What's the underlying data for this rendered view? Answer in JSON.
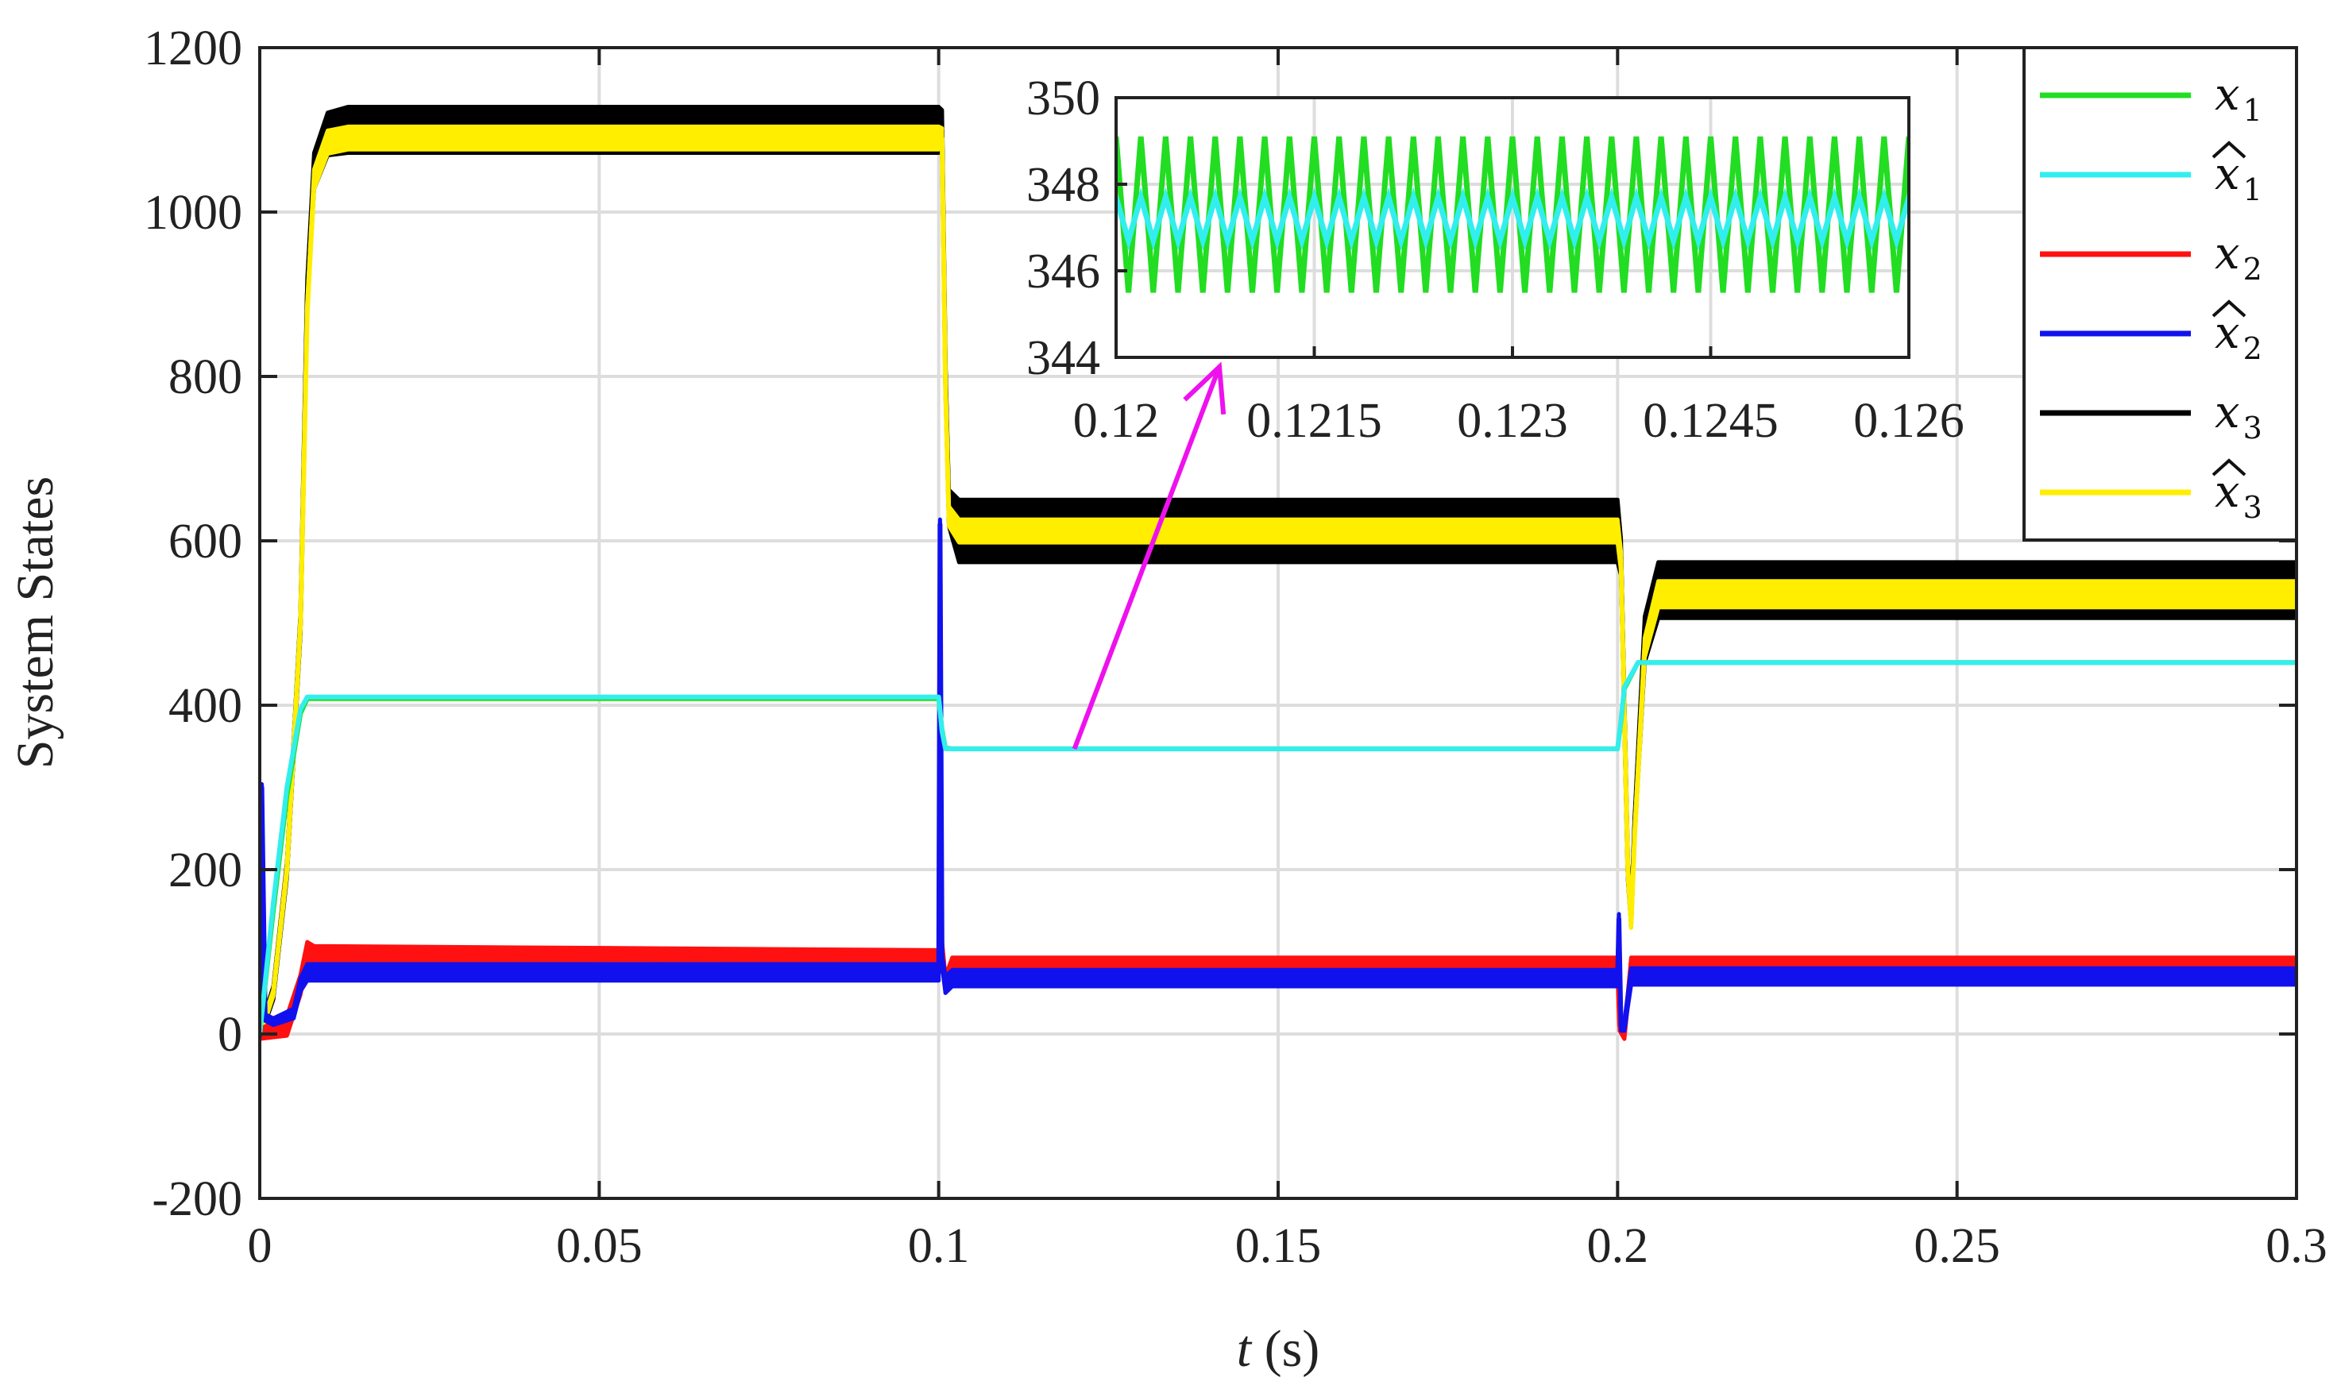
{
  "chart_data": [
    {
      "type": "line",
      "xlabel_var": "t",
      "xlabel_unit": " (s)",
      "ylabel": "System States",
      "xlim": [
        0,
        0.3
      ],
      "ylim": [
        -200,
        1200
      ],
      "xticks": [
        0,
        0.05,
        0.1,
        0.15,
        0.2,
        0.25,
        0.3
      ],
      "xtick_labels": [
        "0",
        "0.05",
        "0.1",
        "0.15",
        "0.2",
        "0.25",
        "0.3"
      ],
      "yticks": [
        -200,
        0,
        200,
        400,
        600,
        800,
        1000,
        1200
      ],
      "ytick_labels": [
        "-200",
        "0",
        "200",
        "400",
        "600",
        "800",
        "1000",
        "1200"
      ],
      "grid": true,
      "legend_position": "top-right",
      "series": [
        {
          "key": "x1",
          "name": "x",
          "sub": "1",
          "hat": false,
          "color": "#22dd22",
          "x": [
            0,
            0.002,
            0.004,
            0.006,
            0.007,
            0.1,
            0.1005,
            0.101,
            0.102,
            0.2,
            0.2005,
            0.201,
            0.203,
            0.3
          ],
          "y": [
            0,
            150,
            290,
            390,
            408,
            408,
            370,
            348,
            347,
            347,
            380,
            420,
            452,
            452
          ]
        },
        {
          "key": "xhat1",
          "name": "x",
          "sub": "1",
          "hat": true,
          "color": "#33eeee",
          "x": [
            0,
            0.002,
            0.004,
            0.006,
            0.007,
            0.1,
            0.1005,
            0.101,
            0.102,
            0.2,
            0.2005,
            0.201,
            0.203,
            0.3
          ],
          "y": [
            0,
            160,
            300,
            395,
            410,
            410,
            368,
            347,
            347,
            347,
            382,
            422,
            452,
            452
          ]
        },
        {
          "key": "x2",
          "name": "x",
          "sub": "2",
          "hat": false,
          "color": "#ff1111",
          "x": [
            0,
            0.004,
            0.006,
            0.007,
            0.008,
            0.1,
            0.1003,
            0.101,
            0.102,
            0.2,
            0.2003,
            0.201,
            0.202,
            0.3
          ],
          "y": [
            0,
            10,
            60,
            100,
            95,
            90,
            120,
            60,
            85,
            85,
            10,
            0,
            85,
            85
          ],
          "band": [
            6,
            12,
            12,
            12,
            12,
            12,
            10,
            10,
            8,
            8,
            6,
            6,
            8,
            8
          ]
        },
        {
          "key": "xhat2",
          "name": "x",
          "sub": "2",
          "hat": true,
          "color": "#1111ee",
          "x": [
            0,
            0.0003,
            0.0008,
            0.002,
            0.005,
            0.006,
            0.007,
            0.1,
            0.1002,
            0.1005,
            0.101,
            0.102,
            0.2,
            0.2002,
            0.2005,
            0.201,
            0.202,
            0.3
          ],
          "y": [
            0,
            300,
            20,
            15,
            25,
            60,
            75,
            75,
            620,
            90,
            60,
            68,
            68,
            140,
            10,
            10,
            70,
            70
          ],
          "band": [
            4,
            4,
            4,
            4,
            6,
            8,
            10,
            10,
            6,
            8,
            10,
            10,
            10,
            6,
            6,
            6,
            10,
            10
          ]
        },
        {
          "key": "x3",
          "name": "x",
          "sub": "3",
          "hat": false,
          "color": "#000000",
          "x": [
            0,
            0.002,
            0.004,
            0.006,
            0.007,
            0.008,
            0.01,
            0.013,
            0.1,
            0.1005,
            0.101,
            0.1015,
            0.103,
            0.2,
            0.2005,
            0.2015,
            0.202,
            0.2025,
            0.204,
            0.206,
            0.3
          ],
          "y": [
            0,
            50,
            200,
            500,
            900,
            1050,
            1095,
            1100,
            1100,
            1100,
            800,
            640,
            612,
            612,
            580,
            200,
            140,
            250,
            480,
            540,
            540
          ],
          "band": [
            6,
            8,
            10,
            14,
            18,
            22,
            26,
            28,
            28,
            24,
            22,
            22,
            38,
            38,
            22,
            12,
            10,
            14,
            28,
            34,
            34
          ]
        },
        {
          "key": "xhat3",
          "name": "x",
          "sub": "3",
          "hat": true,
          "color": "#ffee00",
          "x": [
            0,
            0.002,
            0.004,
            0.006,
            0.007,
            0.008,
            0.01,
            0.013,
            0.1,
            0.1005,
            0.101,
            0.1015,
            0.103,
            0.2,
            0.2005,
            0.2015,
            0.202,
            0.2025,
            0.204,
            0.206,
            0.3
          ],
          "y": [
            0,
            50,
            200,
            500,
            880,
            1040,
            1085,
            1090,
            1090,
            1090,
            790,
            630,
            612,
            612,
            575,
            200,
            135,
            240,
            470,
            535,
            535
          ],
          "band": [
            4,
            4,
            6,
            8,
            10,
            12,
            14,
            14,
            14,
            12,
            12,
            12,
            14,
            14,
            12,
            8,
            6,
            8,
            12,
            16,
            16
          ]
        }
      ]
    },
    {
      "type": "line",
      "role": "inset",
      "xlim": [
        0.12,
        0.126
      ],
      "ylim": [
        344,
        350
      ],
      "xticks": [
        0.12,
        0.1215,
        0.123,
        0.1245,
        0.126
      ],
      "xtick_labels": [
        "0.12",
        "0.1215",
        "0.123",
        "0.1245",
        "0.126"
      ],
      "yticks": [
        344,
        346,
        348,
        350
      ],
      "ytick_labels": [
        "344",
        "346",
        "348",
        "350"
      ],
      "grid": true,
      "series": [
        {
          "key": "x1",
          "color": "#22dd22",
          "center": 347.3,
          "amplitude": 1.8,
          "cycles": 32
        },
        {
          "key": "xhat1",
          "color": "#33eeee",
          "center": 347.2,
          "amplitude": 0.5,
          "cycles": 32
        }
      ]
    }
  ],
  "annotation": {
    "type": "arrow",
    "color": "#ee11ee",
    "from": {
      "x": 0.12,
      "y": 347
    },
    "to": "inset"
  }
}
